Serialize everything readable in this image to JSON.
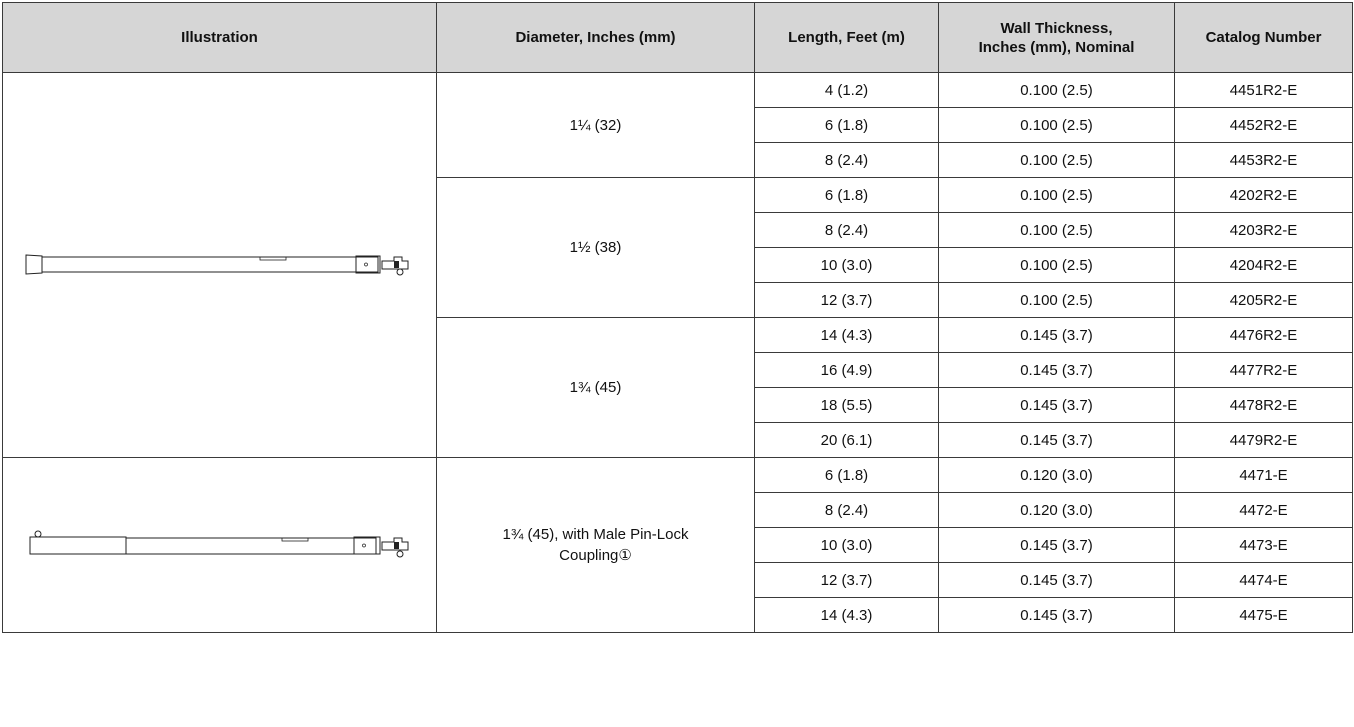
{
  "headers": {
    "illustration": "Illustration",
    "diameter": "Diameter, Inches (mm)",
    "length": "Length, Feet (m)",
    "wall_line1": "Wall Thickness,",
    "wall_line2": "Inches (mm), Nominal",
    "catalog": "Catalog Number"
  },
  "groups": [
    {
      "diameter": "1¼ (32)",
      "rows": [
        {
          "length": "4 (1.2)",
          "wall": "0.100 (2.5)",
          "catalog": "4451R2-E"
        },
        {
          "length": "6 (1.8)",
          "wall": "0.100 (2.5)",
          "catalog": "4452R2-E"
        },
        {
          "length": "8 (2.4)",
          "wall": "0.100 (2.5)",
          "catalog": "4453R2-E"
        }
      ]
    },
    {
      "diameter": "1½ (38)",
      "rows": [
        {
          "length": "6 (1.8)",
          "wall": "0.100 (2.5)",
          "catalog": "4202R2-E"
        },
        {
          "length": "8 (2.4)",
          "wall": "0.100 (2.5)",
          "catalog": "4203R2-E"
        },
        {
          "length": "10 (3.0)",
          "wall": "0.100 (2.5)",
          "catalog": "4204R2-E"
        },
        {
          "length": "12 (3.7)",
          "wall": "0.100 (2.5)",
          "catalog": "4205R2-E"
        }
      ]
    },
    {
      "diameter": "1¾ (45)",
      "rows": [
        {
          "length": "14 (4.3)",
          "wall": "0.145 (3.7)",
          "catalog": "4476R2-E"
        },
        {
          "length": "16 (4.9)",
          "wall": "0.145 (3.7)",
          "catalog": "4477R2-E"
        },
        {
          "length": "18 (5.5)",
          "wall": "0.145 (3.7)",
          "catalog": "4478R2-E"
        },
        {
          "length": "20 (6.1)",
          "wall": "0.145 (3.7)",
          "catalog": "4479R2-E"
        }
      ]
    },
    {
      "diameter_line1": "1¾ (45), with Male Pin-Lock",
      "diameter_line2": "Coupling①",
      "rows": [
        {
          "length": "6 (1.8)",
          "wall": "0.120 (3.0)",
          "catalog": "4471-E"
        },
        {
          "length": "8 (2.4)",
          "wall": "0.120 (3.0)",
          "catalog": "4472-E"
        },
        {
          "length": "10 (3.0)",
          "wall": "0.145 (3.7)",
          "catalog": "4473-E"
        },
        {
          "length": "12 (3.7)",
          "wall": "0.145 (3.7)",
          "catalog": "4474-E"
        },
        {
          "length": "14 (4.3)",
          "wall": "0.145 (3.7)",
          "catalog": "4475-E"
        }
      ]
    }
  ],
  "illustrations": {
    "top": "tapered-stick-icon",
    "bottom": "pin-lock-stick-icon"
  }
}
